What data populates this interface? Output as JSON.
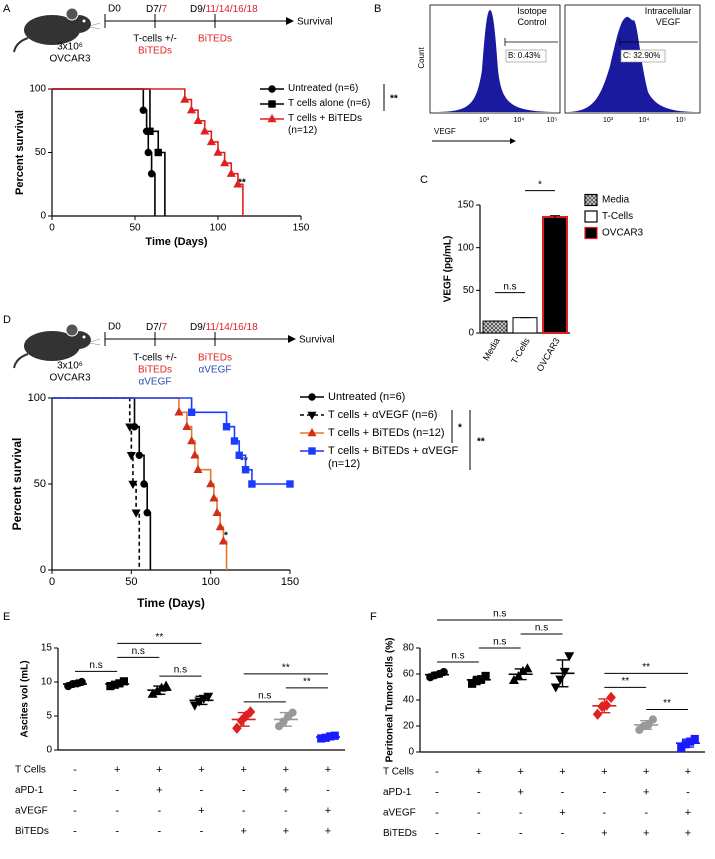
{
  "panel_labels": [
    "A",
    "B",
    "C",
    "D",
    "E",
    "F"
  ],
  "timeline_a": {
    "d0": "D0",
    "d7": [
      "D7/",
      "7"
    ],
    "d9": [
      "D9/",
      "11/14/16/18"
    ],
    "end": "Survival",
    "cells": [
      "3x10⁶",
      "OVCAR3"
    ],
    "first": [
      "T-cells +/-",
      "BiTEDs"
    ],
    "second": [
      "BiTEDs"
    ]
  },
  "timeline_d": {
    "d0": "D0",
    "d7": [
      "D7/",
      "7"
    ],
    "d9": [
      "D9/",
      "11/14/16/18"
    ],
    "end": "Survival",
    "cells": [
      "3x10⁶",
      "OVCAR3"
    ],
    "first": [
      "T-cells +/-",
      "BiTEDs",
      "αVEGF"
    ],
    "second": [
      "BiTEDs",
      "αVEGF"
    ]
  },
  "flow": {
    "panels": [
      {
        "title": "Isotope Control",
        "gate": "B: 0.43%"
      },
      {
        "title": "Intracellular VEGF",
        "gate": "C: 32.90%"
      }
    ],
    "ylabel": "Count",
    "xlabel": "VEGF",
    "ticks": [
      "10³",
      "10⁴",
      "10⁵"
    ]
  },
  "chart_data": [
    {
      "type": "survival",
      "xlabel": "Time (Days)",
      "ylabel": "Percent survival",
      "xlim": [
        0,
        150
      ],
      "xticks": [
        0,
        50,
        100,
        150
      ],
      "ylim": [
        0,
        100
      ],
      "yticks": [
        0,
        50,
        100
      ],
      "series": [
        {
          "name": "Untreated (n=6)",
          "color": "#000000",
          "marker": "circle",
          "dashed": false,
          "x": [
            0,
            55,
            57,
            58,
            60,
            62
          ],
          "values": [
            100,
            83.3,
            66.7,
            50,
            33.3,
            0
          ]
        },
        {
          "name": "T cells alone (n=6)",
          "color": "#000000",
          "marker": "square",
          "dashed": false,
          "x": [
            0,
            59,
            64,
            68
          ],
          "values": [
            100,
            66.7,
            50,
            0
          ]
        },
        {
          "name": "T cells + BiTEDs (n=12)",
          "color": "#e02020",
          "marker": "triangle-up",
          "dashed": false,
          "x": [
            0,
            80,
            84,
            88,
            92,
            96,
            100,
            104,
            108,
            112,
            115
          ],
          "values": [
            100,
            91.7,
            83.3,
            75,
            66.7,
            58.3,
            50,
            41.7,
            33.3,
            25,
            0
          ]
        }
      ],
      "annotations": [
        "**",
        "**"
      ]
    },
    {
      "type": "bar",
      "ylabel": "VEGF (pg/mL)",
      "categories": [
        "Media",
        "T-Cells",
        "OVCAR3"
      ],
      "values": [
        14,
        18,
        136
      ],
      "errors": [
        0,
        0,
        1.5
      ],
      "colors": [
        "#888888",
        "#ffffff",
        "#000000"
      ],
      "edge_colors": [
        "#000000",
        "#000000",
        "#e02020"
      ],
      "hatch": [
        true,
        false,
        false
      ],
      "ylim": [
        0,
        150
      ],
      "yticks": [
        0,
        50,
        100,
        150
      ],
      "brackets": [
        {
          "groups": [
            0,
            1
          ],
          "label": "n.s"
        },
        {
          "groups": [
            1,
            2
          ],
          "label": "*"
        }
      ]
    },
    {
      "type": "survival",
      "xlabel": "Time (Days)",
      "ylabel": "Percent survival",
      "xlim": [
        0,
        150
      ],
      "xticks": [
        0,
        50,
        100,
        150
      ],
      "ylim": [
        0,
        100
      ],
      "yticks": [
        0,
        50,
        100
      ],
      "series": [
        {
          "name": "Untreated (n=6)",
          "color": "#000000",
          "marker": "circle",
          "dashed": false,
          "x": [
            0,
            52,
            55,
            58,
            60,
            62
          ],
          "values": [
            100,
            83.3,
            66.7,
            50,
            33.3,
            0
          ]
        },
        {
          "name": "T cells + αVEGF (n=6)",
          "color": "#000000",
          "marker": "triangle-down",
          "dashed": true,
          "x": [
            0,
            49,
            50,
            51,
            53,
            55
          ],
          "values": [
            100,
            83.3,
            66.7,
            50,
            33.3,
            0
          ]
        },
        {
          "name": "T cells + BiTEDs (n=12)",
          "color": "#e8782a",
          "marker_color": "#d0301a",
          "marker": "triangle-up",
          "dashed": false,
          "x": [
            0,
            80,
            85,
            88,
            90,
            92,
            100,
            102,
            104,
            106,
            108,
            110
          ],
          "values": [
            100,
            91.7,
            83.3,
            75,
            66.7,
            58.3,
            50,
            41.7,
            33.3,
            25,
            16.7,
            0
          ]
        },
        {
          "name": "T cells + BiTEDs + αVEGF (n=12)",
          "color": "#1a3cff",
          "marker": "square",
          "dashed": false,
          "x": [
            0,
            88,
            110,
            115,
            118,
            122,
            126,
            150
          ],
          "values": [
            100,
            91.7,
            83.3,
            75,
            66.7,
            58.3,
            50,
            50
          ]
        }
      ],
      "annotations": [
        "*",
        "**",
        "**",
        "*"
      ]
    },
    {
      "type": "dot",
      "ylabel": "Ascites vol (mL)",
      "ylim": [
        0,
        15
      ],
      "yticks": [
        0,
        5,
        10,
        15
      ],
      "groups": [
        {
          "color": "#000000",
          "marker": "circle",
          "values": [
            9.4,
            9.7,
            9.8,
            10
          ],
          "mean": 9.7,
          "sd": 0.25
        },
        {
          "color": "#000000",
          "marker": "square",
          "values": [
            9.4,
            9.6,
            9.8,
            10.1
          ],
          "mean": 9.7,
          "sd": 0.3
        },
        {
          "color": "#000000",
          "marker": "triangle-up",
          "values": [
            8.2,
            8.6,
            9.1,
            9.4
          ],
          "mean": 8.8,
          "sd": 0.6
        },
        {
          "color": "#000000",
          "marker": "triangle-down",
          "values": [
            6.6,
            7.2,
            7.6,
            7.9
          ],
          "mean": 7.3,
          "sd": 0.6
        },
        {
          "color": "#e02020",
          "marker": "diamond",
          "values": [
            3.2,
            4.3,
            5,
            5.6
          ],
          "mean": 4.5,
          "sd": 1
        },
        {
          "color": "#999999",
          "marker": "circle",
          "values": [
            3.5,
            4.2,
            4.9,
            5.5
          ],
          "mean": 4.5,
          "sd": 1
        },
        {
          "color": "#1a1aff",
          "marker": "square",
          "values": [
            1.7,
            1.8,
            2,
            2.1
          ],
          "mean": 1.9,
          "sd": 0.2
        }
      ],
      "brackets": [
        {
          "groups": [
            0,
            1
          ],
          "label": "n.s"
        },
        {
          "groups": [
            1,
            2
          ],
          "label": "n.s"
        },
        {
          "groups": [
            2,
            3
          ],
          "label": "n.s"
        },
        {
          "groups": [
            1,
            3
          ],
          "label": "**"
        },
        {
          "groups": [
            4,
            5
          ],
          "label": "n.s"
        },
        {
          "groups": [
            5,
            6
          ],
          "label": "**"
        },
        {
          "groups": [
            4,
            6
          ],
          "label": "**"
        }
      ],
      "conditions": [
        {
          "label": "T Cells",
          "marks": [
            "-",
            "+",
            "+",
            "+",
            "+",
            "+",
            "+"
          ]
        },
        {
          "label": "aPD-1",
          "marks": [
            "-",
            "-",
            "+",
            "-",
            "-",
            "+",
            "-"
          ]
        },
        {
          "label": "aVEGF",
          "marks": [
            "-",
            "-",
            "-",
            "+",
            "-",
            "-",
            "+"
          ]
        },
        {
          "label": "BiTEDs",
          "marks": [
            "-",
            "-",
            "-",
            "-",
            "+",
            "+",
            "+"
          ]
        }
      ]
    },
    {
      "type": "dot",
      "ylabel": "Peritoneal Tumor cells (%)",
      "ylim": [
        0,
        80
      ],
      "yticks": [
        0,
        20,
        40,
        60,
        80
      ],
      "groups": [
        {
          "color": "#000000",
          "marker": "circle",
          "values": [
            57.5,
            59,
            60,
            61.5
          ],
          "mean": 59.5,
          "sd": 1.7
        },
        {
          "color": "#000000",
          "marker": "square",
          "values": [
            52.5,
            54.5,
            56,
            58.5
          ],
          "mean": 55.5,
          "sd": 2.6
        },
        {
          "color": "#000000",
          "marker": "triangle-up",
          "values": [
            55,
            58,
            62,
            64
          ],
          "mean": 59.8,
          "sd": 4.1
        },
        {
          "color": "#000000",
          "marker": "triangle-down",
          "values": [
            50,
            56,
            62,
            74
          ],
          "mean": 60.5,
          "sd": 10.3
        },
        {
          "color": "#e02020",
          "marker": "diamond",
          "values": [
            29,
            35,
            36,
            42
          ],
          "mean": 35.5,
          "sd": 5.3
        },
        {
          "color": "#999999",
          "marker": "circle",
          "values": [
            17,
            20,
            21,
            25
          ],
          "mean": 20.8,
          "sd": 3.3
        },
        {
          "color": "#1a1aff",
          "marker": "square",
          "values": [
            3,
            6,
            8,
            10
          ],
          "mean": 6.8,
          "sd": 3
        }
      ],
      "brackets": [
        {
          "groups": [
            0,
            1
          ],
          "label": "n.s"
        },
        {
          "groups": [
            1,
            2
          ],
          "label": "n.s"
        },
        {
          "groups": [
            2,
            3
          ],
          "label": "n.s"
        },
        {
          "groups": [
            0,
            3
          ],
          "label": "n.s"
        },
        {
          "groups": [
            4,
            5
          ],
          "label": "**"
        },
        {
          "groups": [
            5,
            6
          ],
          "label": "**"
        },
        {
          "groups": [
            4,
            6
          ],
          "label": "**"
        }
      ],
      "conditions": [
        {
          "label": "T Cells",
          "marks": [
            "-",
            "+",
            "+",
            "+",
            "+",
            "+",
            "+"
          ]
        },
        {
          "label": "aPD-1",
          "marks": [
            "-",
            "-",
            "+",
            "-",
            "-",
            "+",
            "-"
          ]
        },
        {
          "label": "aVEGF",
          "marks": [
            "-",
            "-",
            "-",
            "+",
            "-",
            "-",
            "+"
          ]
        },
        {
          "label": "BiTEDs",
          "marks": [
            "-",
            "-",
            "-",
            "-",
            "+",
            "+",
            "+"
          ]
        }
      ]
    }
  ]
}
